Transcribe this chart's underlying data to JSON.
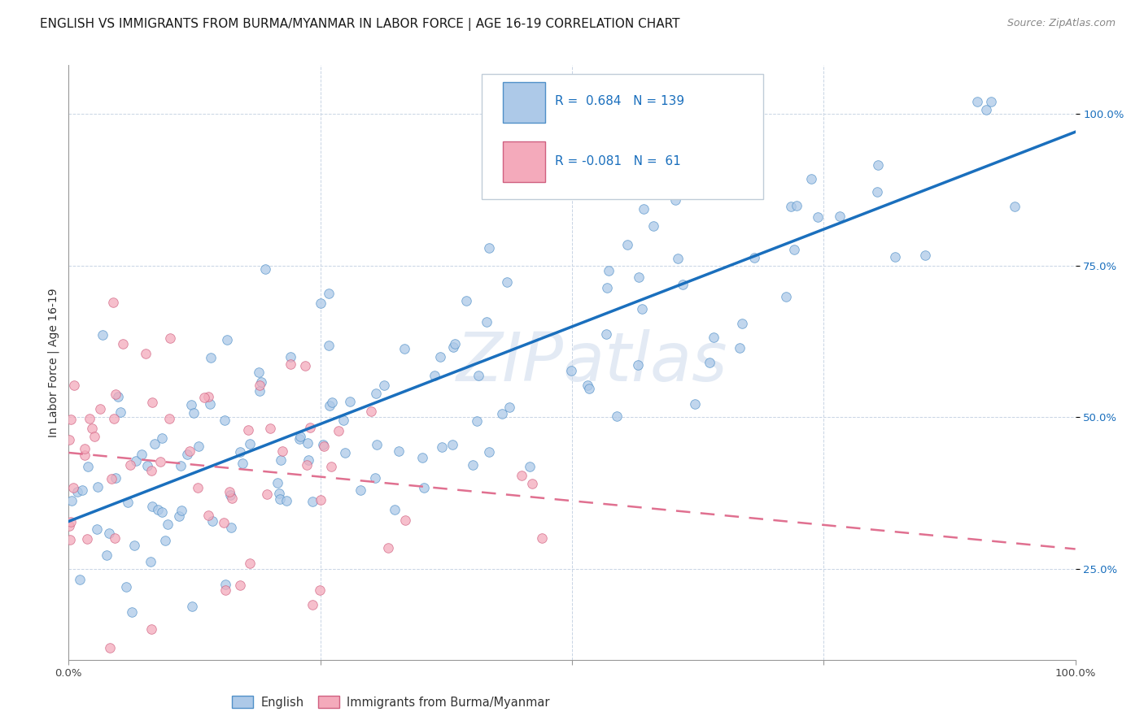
{
  "title": "ENGLISH VS IMMIGRANTS FROM BURMA/MYANMAR IN LABOR FORCE | AGE 16-19 CORRELATION CHART",
  "source": "Source: ZipAtlas.com",
  "ylabel": "In Labor Force | Age 16-19",
  "xlim": [
    0.0,
    1.0
  ],
  "ylim": [
    0.1,
    1.08
  ],
  "xtick_positions": [
    0.0,
    0.25,
    0.5,
    0.75,
    1.0
  ],
  "xtick_labels": [
    "0.0%",
    "",
    "",
    "",
    "100.0%"
  ],
  "ytick_positions": [
    0.25,
    0.5,
    0.75,
    1.0
  ],
  "ytick_labels": [
    "25.0%",
    "50.0%",
    "75.0%",
    "100.0%"
  ],
  "english_R": 0.684,
  "english_N": 139,
  "burma_R": -0.081,
  "burma_N": 61,
  "legend_label_1": "English",
  "legend_label_2": "Immigrants from Burma/Myanmar",
  "watermark": "ZIPatlas",
  "english_color": "#adc9e8",
  "burma_color": "#f4aabb",
  "english_edge_color": "#5090c8",
  "burma_edge_color": "#d06080",
  "english_line_color": "#1a6fbd",
  "burma_line_color": "#e07090",
  "background_color": "#ffffff",
  "grid_color": "#c8d4e4",
  "title_fontsize": 11,
  "axis_label_fontsize": 10,
  "tick_fontsize": 9.5,
  "legend_fontsize": 11,
  "source_fontsize": 9,
  "scatter_size": 70,
  "scatter_alpha": 0.75
}
